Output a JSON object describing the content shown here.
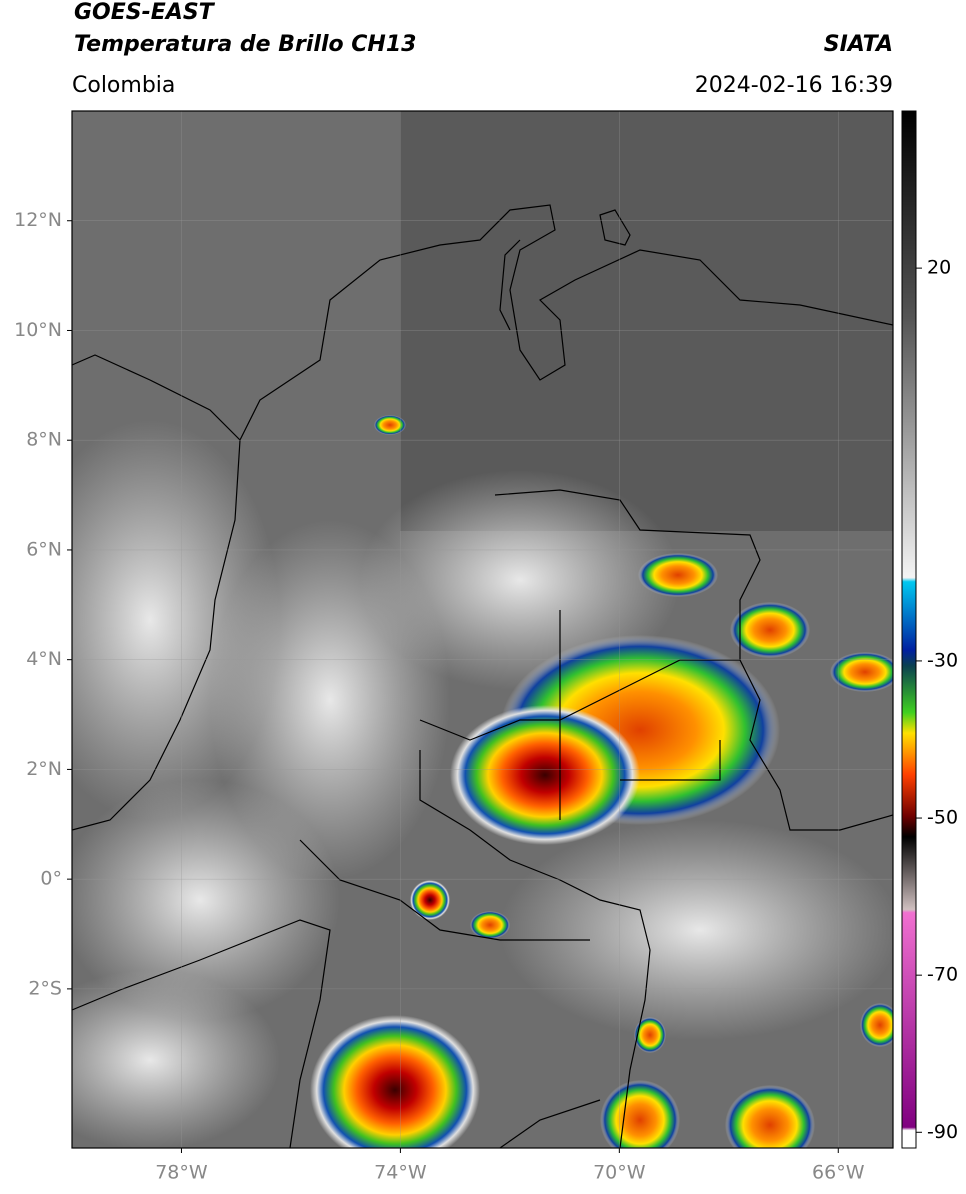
{
  "header": {
    "title": "GOES-EAST",
    "subtitle": "Temperatura de Brillo CH13",
    "region": "Colombia",
    "source": "SIATA",
    "datetime": "2024-02-16 16:39"
  },
  "map": {
    "lon_range": [
      -80,
      -65
    ],
    "lat_range": [
      -4.9,
      14
    ],
    "lon_ticks": [
      {
        "value": -78,
        "label": "78°W"
      },
      {
        "value": -74,
        "label": "74°W"
      },
      {
        "value": -70,
        "label": "70°W"
      },
      {
        "value": -66,
        "label": "66°W"
      }
    ],
    "lat_ticks": [
      {
        "value": 12,
        "label": "12°N"
      },
      {
        "value": 10,
        "label": "10°N"
      },
      {
        "value": 8,
        "label": "8°N"
      },
      {
        "value": 6,
        "label": "6°N"
      },
      {
        "value": 4,
        "label": "4°N"
      },
      {
        "value": 2,
        "label": "2°N"
      },
      {
        "value": 0,
        "label": "0°"
      },
      {
        "value": -2,
        "label": "2°S"
      }
    ]
  },
  "colorbar": {
    "range": [
      -92,
      40
    ],
    "ticks": [
      20,
      -30,
      -50,
      -70,
      -90
    ]
  }
}
